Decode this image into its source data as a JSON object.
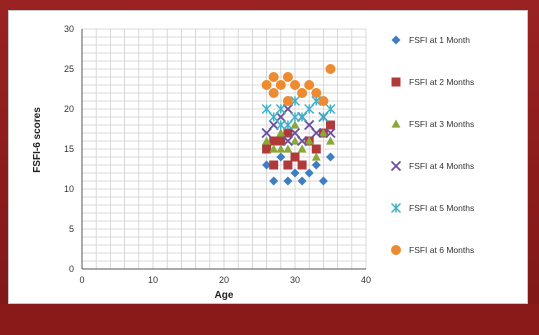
{
  "chart_data": {
    "type": "scatter",
    "title": "",
    "xlabel": "Age",
    "ylabel": "FSFI-6 scores",
    "xlim": [
      0,
      40
    ],
    "ylim": [
      0,
      30
    ],
    "x_ticks": [
      "0",
      "10",
      "20",
      "30",
      "40"
    ],
    "y_ticks": [
      "0",
      "5",
      "10",
      "15",
      "20",
      "25",
      "30"
    ],
    "grid": true,
    "legend_position": "right",
    "series": [
      {
        "name": "FSFI at 1 Month",
        "marker": "diamond",
        "color": "#3f7fc1",
        "points": [
          [
            26,
            13
          ],
          [
            27,
            11
          ],
          [
            28,
            14
          ],
          [
            29,
            11
          ],
          [
            30,
            12
          ],
          [
            31,
            11
          ],
          [
            32,
            12
          ],
          [
            33,
            13
          ],
          [
            34,
            11
          ],
          [
            35,
            14
          ],
          [
            30,
            14
          ],
          [
            28,
            16
          ]
        ]
      },
      {
        "name": "FSFI at 2  Months",
        "marker": "square",
        "color": "#b03a3a",
        "points": [
          [
            26,
            15
          ],
          [
            27,
            13
          ],
          [
            28,
            16
          ],
          [
            29,
            13
          ],
          [
            30,
            14
          ],
          [
            31,
            13
          ],
          [
            32,
            16
          ],
          [
            33,
            15
          ],
          [
            34,
            17
          ],
          [
            35,
            18
          ],
          [
            29,
            17
          ],
          [
            27,
            16
          ]
        ]
      },
      {
        "name": "FSFI at 3  Months",
        "marker": "triangle",
        "color": "#8aa83a",
        "points": [
          [
            26,
            16
          ],
          [
            27,
            15
          ],
          [
            28,
            17
          ],
          [
            29,
            15
          ],
          [
            30,
            16
          ],
          [
            31,
            15
          ],
          [
            32,
            16
          ],
          [
            33,
            14
          ],
          [
            34,
            17
          ],
          [
            35,
            16
          ],
          [
            30,
            18
          ],
          [
            28,
            15
          ]
        ]
      },
      {
        "name": "FSFI at 4  Months",
        "marker": "x",
        "color": "#6a4fa0",
        "points": [
          [
            26,
            17
          ],
          [
            27,
            18
          ],
          [
            28,
            19
          ],
          [
            29,
            16
          ],
          [
            30,
            17
          ],
          [
            31,
            19
          ],
          [
            32,
            18
          ],
          [
            33,
            17
          ],
          [
            34,
            19
          ],
          [
            35,
            17
          ],
          [
            29,
            20
          ],
          [
            31,
            16
          ]
        ]
      },
      {
        "name": "FSFI at 5  Months",
        "marker": "star",
        "color": "#3db0c8",
        "points": [
          [
            26,
            20
          ],
          [
            27,
            19
          ],
          [
            28,
            20
          ],
          [
            29,
            18
          ],
          [
            30,
            21
          ],
          [
            31,
            19
          ],
          [
            32,
            20
          ],
          [
            33,
            21
          ],
          [
            34,
            19
          ],
          [
            35,
            20
          ],
          [
            28,
            18
          ],
          [
            30,
            19
          ]
        ]
      },
      {
        "name": "FSFI at 6  Months",
        "marker": "circle",
        "color": "#ee8a2f",
        "points": [
          [
            26,
            23
          ],
          [
            27,
            22
          ],
          [
            28,
            23
          ],
          [
            29,
            24
          ],
          [
            30,
            23
          ],
          [
            31,
            22
          ],
          [
            32,
            23
          ],
          [
            33,
            22
          ],
          [
            34,
            21
          ],
          [
            35,
            25
          ],
          [
            27,
            24
          ],
          [
            29,
            21
          ]
        ]
      }
    ]
  }
}
